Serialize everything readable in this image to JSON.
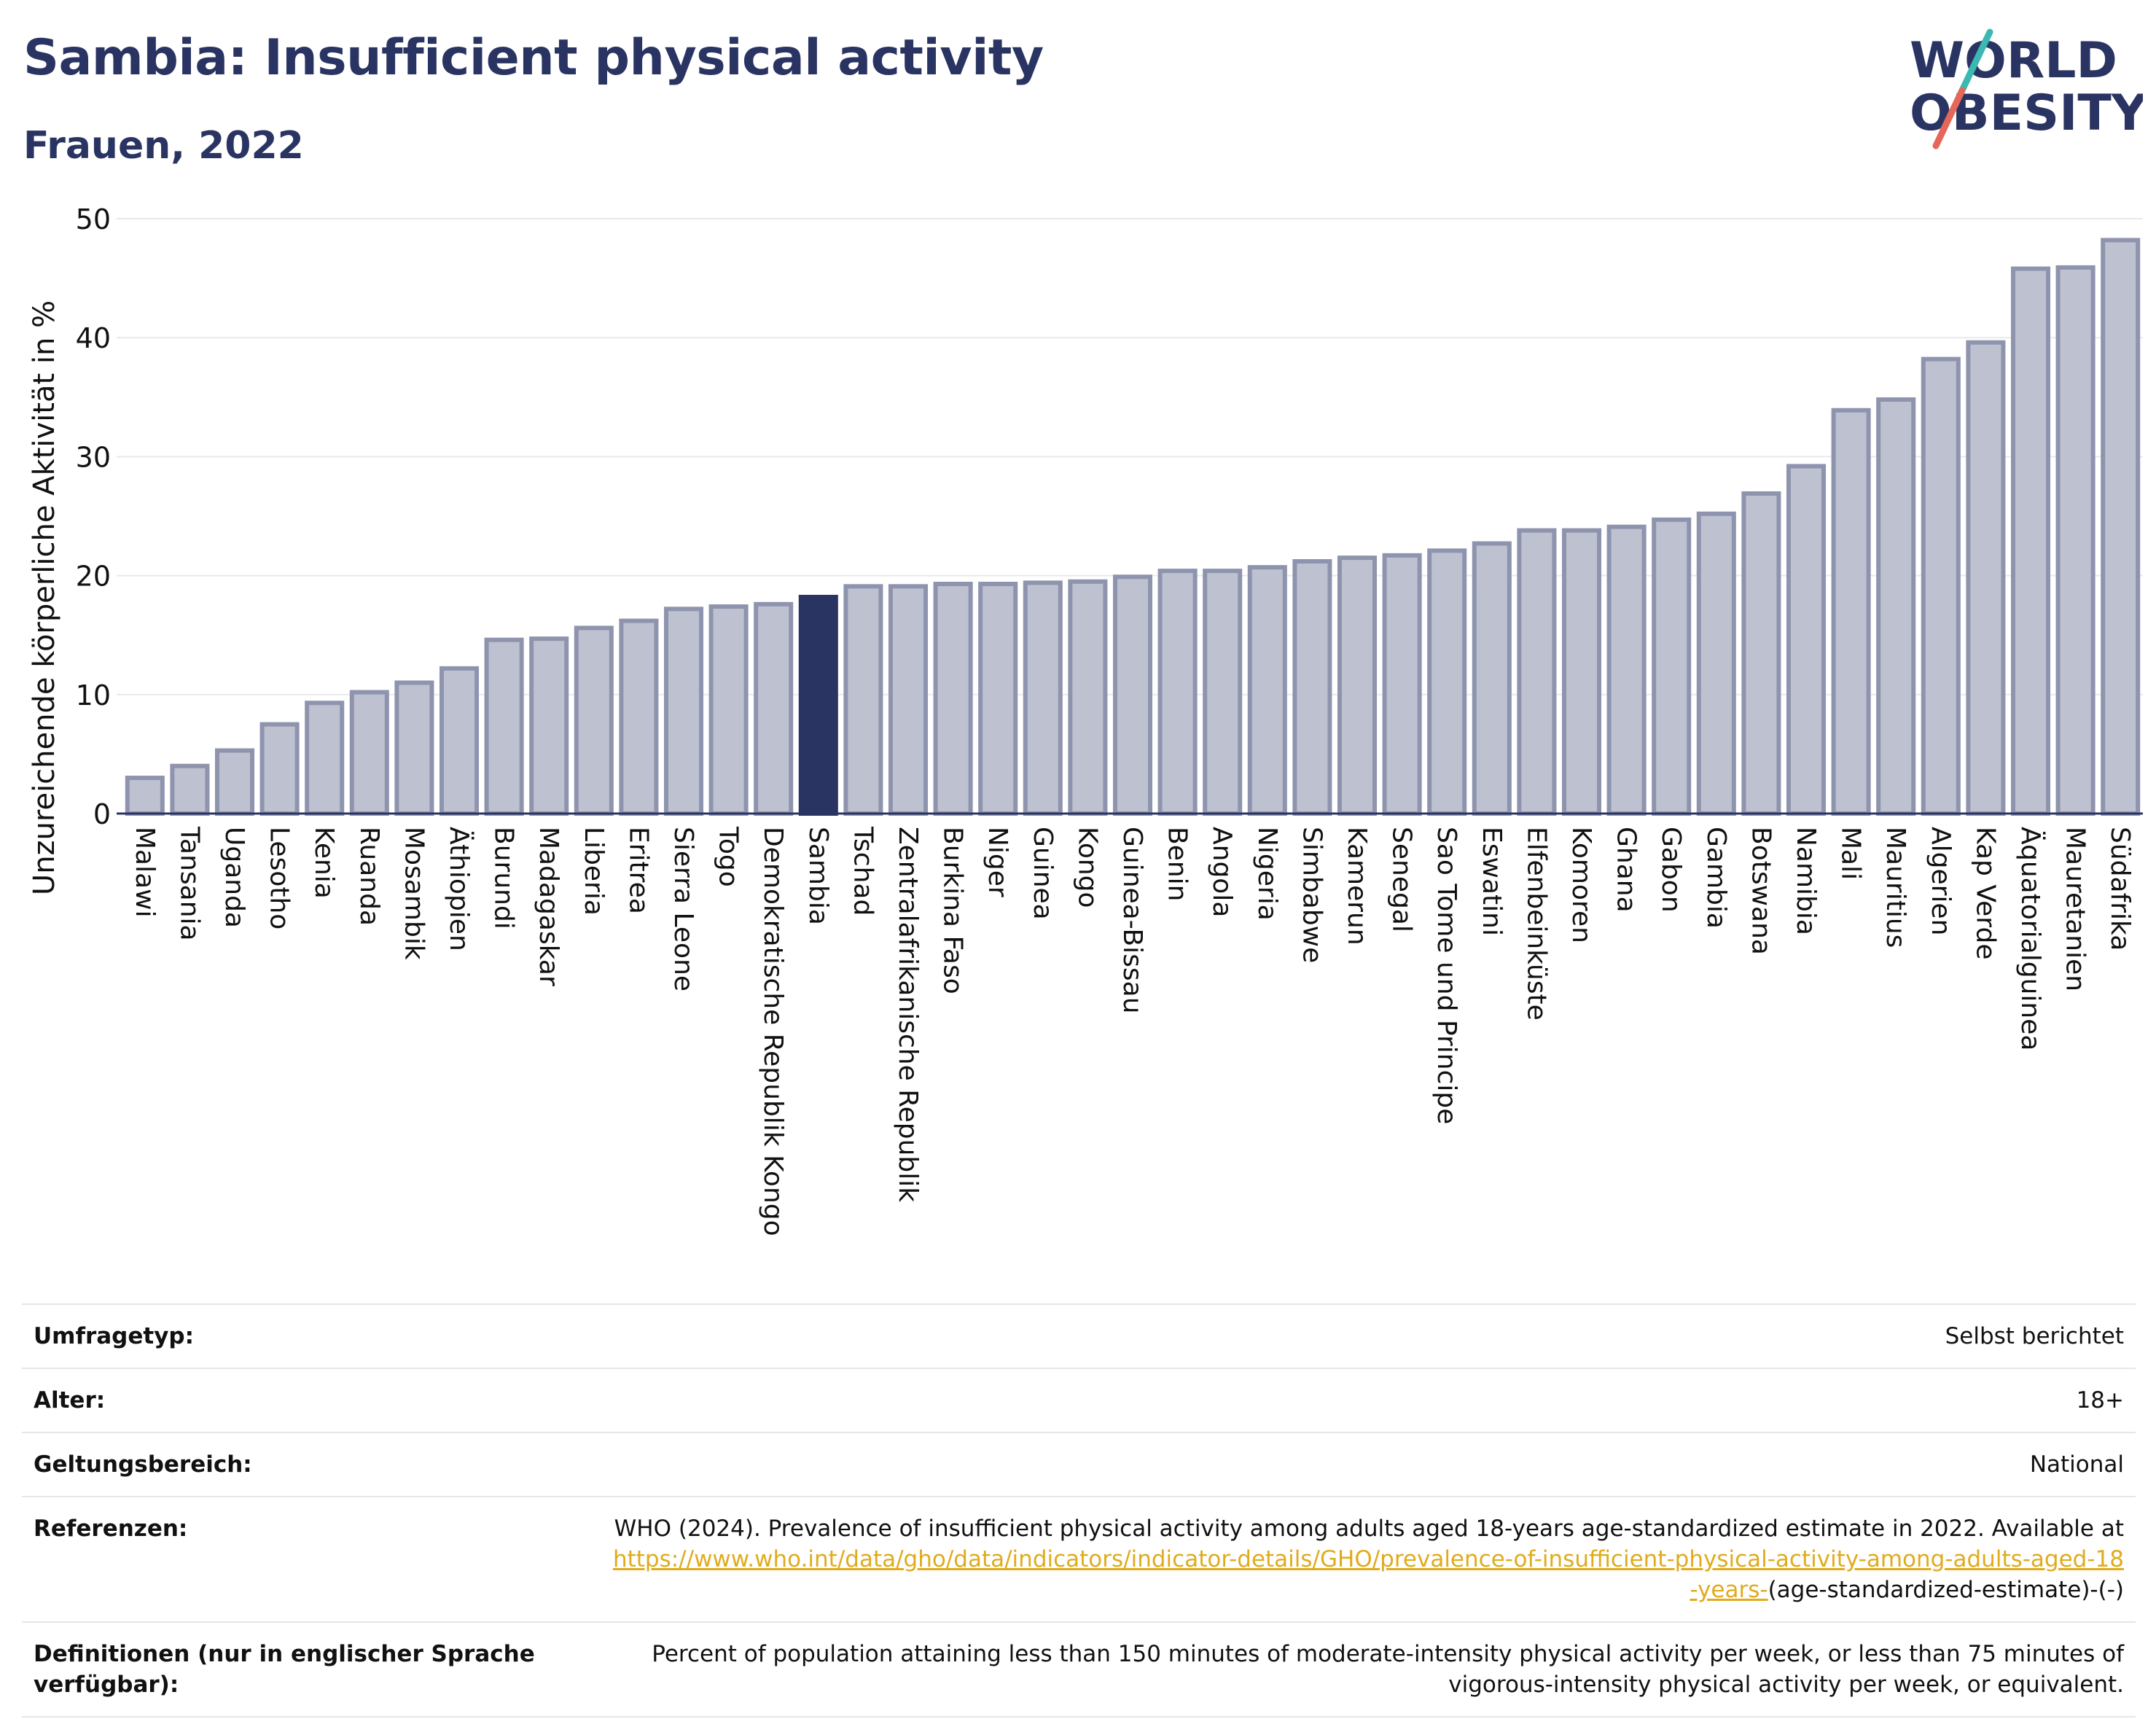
{
  "header": {
    "title": "Sambia: Insufficient physical activity",
    "subtitle": "Frauen, 2022"
  },
  "logo": {
    "line1": "WORLD",
    "line2": "OBESITY",
    "text_color": "#2a3463",
    "slash_colors": [
      "#3cb8b3",
      "#e5675a"
    ]
  },
  "colors": {
    "bar": "#bec1d0",
    "bar_border": "#8f94ae",
    "highlight": "#2a3463",
    "text": "#2a3463",
    "link": "#e0ab1c"
  },
  "chart_data": {
    "type": "bar",
    "ylabel": "Unzureichende körperliche Aktivität in %",
    "ylim": [
      0,
      50
    ],
    "yticks": [
      0,
      10,
      20,
      30,
      40,
      50
    ],
    "grid": true,
    "highlight": "Sambia",
    "categories": [
      "Malawi",
      "Tansania",
      "Uganda",
      "Lesotho",
      "Kenia",
      "Ruanda",
      "Mosambik",
      "Äthiopien",
      "Burundi",
      "Madagaskar",
      "Liberia",
      "Eritrea",
      "Sierra Leone",
      "Togo",
      "Demokratische Republik Kongo",
      "Sambia",
      "Tschad",
      "Zentralafrikanische Republik",
      "Burkina Faso",
      "Niger",
      "Guinea",
      "Kongo",
      "Guinea-Bissau",
      "Benin",
      "Angola",
      "Nigeria",
      "Simbabwe",
      "Kamerun",
      "Senegal",
      "Sao Tome und Principe",
      "Eswatini",
      "Elfenbeinküste",
      "Komoren",
      "Ghana",
      "Gabon",
      "Gambia",
      "Botswana",
      "Namibia",
      "Mali",
      "Mauritius",
      "Algerien",
      "Kap Verde",
      "Äquatorialguinea",
      "Mauretanien",
      "Südafrika"
    ],
    "values": [
      3.0,
      4.0,
      5.3,
      7.5,
      9.3,
      10.2,
      11.0,
      12.2,
      14.6,
      14.7,
      15.6,
      16.2,
      17.2,
      17.4,
      17.6,
      18.2,
      19.1,
      19.1,
      19.3,
      19.3,
      19.4,
      19.5,
      19.9,
      20.4,
      20.4,
      20.7,
      21.2,
      21.5,
      21.7,
      22.1,
      22.7,
      23.8,
      23.8,
      24.1,
      24.7,
      25.2,
      26.9,
      29.2,
      33.9,
      34.8,
      38.2,
      39.6,
      45.8,
      45.9,
      48.2
    ]
  },
  "meta": [
    {
      "label": "Umfragetyp:",
      "value": "Selbst berichtet"
    },
    {
      "label": "Alter:",
      "value": "18+"
    },
    {
      "label": "Geltungsbereich:",
      "value": "National"
    },
    {
      "label": "Referenzen:",
      "value": "WHO (2024). Prevalence of insufficient physical activity among adults aged 18-years age-standardized estimate in 2022. Available at",
      "link": "https://www.who.int/data/gho/data/indicators/indicator-details/GHO/prevalence-of-insufficient-physical-activity-among-adults-aged-18-years-",
      "suffix": "(age-standardized-estimate)-(-)"
    },
    {
      "label": "Definitionen (nur in englischer Sprache verfügbar):",
      "value": "Percent of population attaining less than 150 minutes of moderate-intensity physical activity per week, or less than 75 minutes of vigorous-intensity physical activity per week, or equivalent."
    }
  ]
}
